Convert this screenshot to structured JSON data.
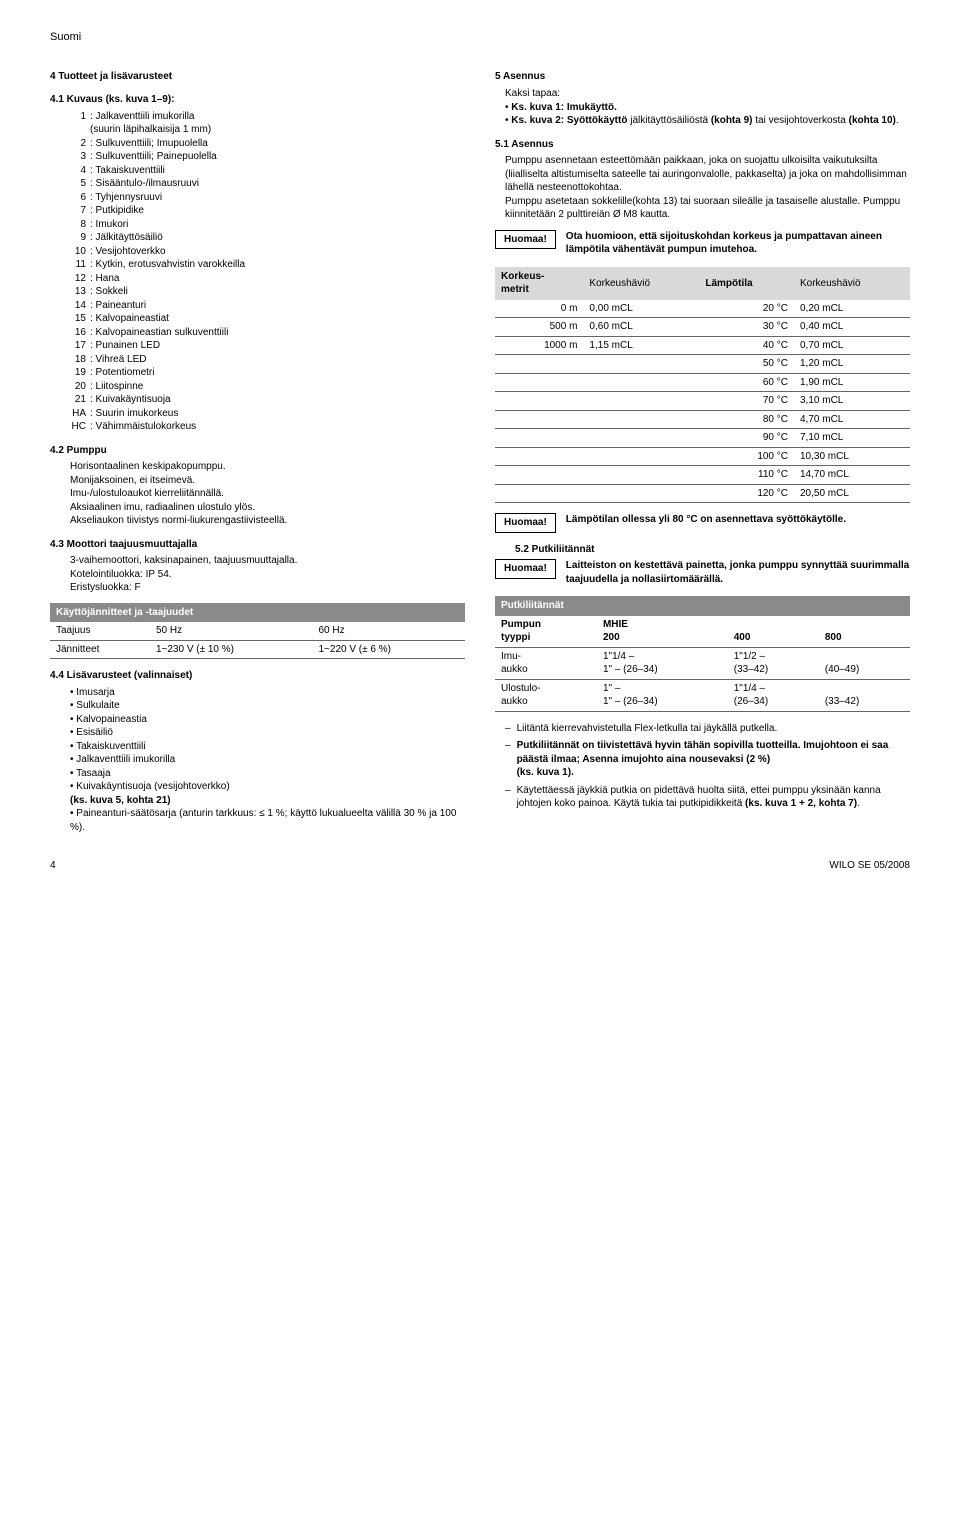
{
  "header": {
    "lang": "Suomi"
  },
  "s4": {
    "title": "4 Tuotteet ja lisävarusteet",
    "s41": {
      "title": "4.1 Kuvaus (ks. kuva 1–9):",
      "items": [
        {
          "n": "1",
          "t": ": Jalkaventtiili imukorilla\n(suurin läpihalkaisija 1 mm)"
        },
        {
          "n": "2",
          "t": ": Sulkuventtiili; Imupuolella"
        },
        {
          "n": "3",
          "t": ": Sulkuventtiili; Painepuolella"
        },
        {
          "n": "4",
          "t": ": Takaiskuventtiili"
        },
        {
          "n": "5",
          "t": ": Sisääntulo-/ilmausruuvi"
        },
        {
          "n": "6",
          "t": ": Tyhjennysruuvi"
        },
        {
          "n": "7",
          "t": ": Putkipidike"
        },
        {
          "n": "8",
          "t": ": Imukori"
        },
        {
          "n": "9",
          "t": ": Jälkitäyttösäiliö"
        },
        {
          "n": "10",
          "t": ": Vesijohtoverkko"
        },
        {
          "n": "11",
          "t": ": Kytkin, erotusvahvistin varokkeilla"
        },
        {
          "n": "12",
          "t": ": Hana"
        },
        {
          "n": "13",
          "t": ": Sokkeli"
        },
        {
          "n": "14",
          "t": ": Paineanturi"
        },
        {
          "n": "15",
          "t": ": Kalvopaineastiat"
        },
        {
          "n": "16",
          "t": ": Kalvopaineastian sulkuventtiili"
        },
        {
          "n": "17",
          "t": ": Punainen LED"
        },
        {
          "n": "18",
          "t": ": Vihreä LED"
        },
        {
          "n": "19",
          "t": ": Potentiometri"
        },
        {
          "n": "20",
          "t": ": Liitospinne"
        },
        {
          "n": "21",
          "t": ": Kuivakäyntisuoja"
        },
        {
          "n": "HA",
          "t": ": Suurin imukorkeus"
        },
        {
          "n": "HC",
          "t": ": Vähimmäistulokorkeus"
        }
      ]
    },
    "s42": {
      "title": "4.2 Pumppu",
      "lines": [
        "Horisontaalinen keskipakopumppu.",
        "Monijaksoinen, ei itseimevä.",
        "Imu-/ulostuloaukot kierreliitännällä.",
        "Aksiaalinen imu, radiaalinen ulostulo ylös.",
        "Akseliaukon tiivistys normi-liukurengastiivisteellä."
      ]
    },
    "s43": {
      "title": "4.3 Moottori taajuusmuuttajalla",
      "lines": [
        "3-vaihemoottori, kaksinapainen, taajuusmuuttajalla.",
        "Kotelointiluokka: IP 54.",
        "Eristysluokka: F"
      ]
    },
    "volt_table": {
      "header": "Käyttöjännitteet ja -taajuudet",
      "rows": [
        [
          "Taajuus",
          "50 Hz",
          "60 Hz"
        ],
        [
          "Jännitteet",
          "1~230 V (± 10 %)",
          "1~220 V (± 6 %)"
        ]
      ]
    },
    "s44": {
      "title": "4.4 Lisävarusteet (valinnaiset)",
      "items": [
        "Imusarja",
        "Sulkulaite",
        "Kalvopaineastia",
        "Esisäiliö",
        "Takaiskuventtiili",
        "Jalkaventtiili imukorilla",
        "Tasaaja",
        "Kuivakäyntisuoja (vesijohtoverkko)\n(ks. kuva 5, kohta 21)",
        "Paineanturi-säätösarja (anturin tarkkuus: ≤ 1 %; käyttö lukualueelta välillä 30 % ja 100 %)."
      ]
    }
  },
  "s5": {
    "title": "5 Asennus",
    "intro": [
      "Kaksi tapaa:",
      "• Ks. kuva 1: Imukäyttö.",
      "• Ks. kuva 2: Syöttökäyttö jälkitäyttösäiliöstä (kohta 9) tai vesijohtoverkosta (kohta 10)."
    ],
    "s51": {
      "title": "5.1 Asennus",
      "para": "Pumppu asennetaan esteettömään paikkaan, joka on suojattu ulkoisilta vaikutuksilta (liialliselta altistumiselta sateelle tai auringonvalolle, pakkaselta) ja joka on mahdollisimman lähellä nesteenottokohtaa.\nPumppu asetetaan sokkelille(kohta 13) tai suoraan sileälle ja tasaiselle alustalle. Pumppu kiinnitetään 2 pulttireiän Ø M8 kautta."
    },
    "note1": {
      "tag": "Huomaa!",
      "text": "Ota huomioon, että sijoituskohdan korkeus ja pumpattavan aineen lämpötila vähentävät pumpun imutehoa."
    },
    "alt_table": {
      "headers": [
        "Korkeus-\nmetrit",
        "Korkeushäviö",
        "Lämpötila",
        "Korkeushäviö"
      ],
      "rows": [
        [
          "0 m",
          "0,00 mCL",
          "20 °C",
          "0,20 mCL"
        ],
        [
          "500 m",
          "0,60 mCL",
          "30 °C",
          "0,40 mCL"
        ],
        [
          "1000 m",
          "1,15 mCL",
          "40 °C",
          "0,70 mCL"
        ],
        [
          "",
          "",
          "50 °C",
          "1,20 mCL"
        ],
        [
          "",
          "",
          "60 °C",
          "1,90 mCL"
        ],
        [
          "",
          "",
          "70 °C",
          "3,10 mCL"
        ],
        [
          "",
          "",
          "80 °C",
          "4,70 mCL"
        ],
        [
          "",
          "",
          "90 °C",
          "7,10 mCL"
        ],
        [
          "",
          "",
          "100 °C",
          "10,30 mCL"
        ],
        [
          "",
          "",
          "110 °C",
          "14,70 mCL"
        ],
        [
          "",
          "",
          "120 °C",
          "20,50 mCL"
        ]
      ]
    },
    "note2": {
      "tag": "Huomaa!",
      "text": "Lämpötilan ollessa yli 80 °C on asennettava syöttökäytölle."
    },
    "s52": {
      "title": "5.2 Putkiliitännät"
    },
    "note3": {
      "tag": "Huomaa!",
      "text": "Laitteiston on kestettävä painetta, jonka pumppu synnyttää suurimmalla taajuudella ja nollasiirtomäärällä."
    },
    "pipe_table": {
      "header": "Putkiliitännät",
      "rows": [
        [
          "Pumpun\ntyyppi",
          "MHIE\n200",
          "\n400",
          "\n800"
        ],
        [
          "Imu-\naukko",
          "1\"1/4 –\n1\" – (26–34)",
          "1\"1/2 –\n(33–42)",
          "\n(40–49)"
        ],
        [
          "Ulostulo-\naukko",
          "1\" –\n1\" – (26–34)",
          "1\"1/4 –\n(26–34)",
          "\n(33–42)"
        ]
      ]
    },
    "dash_items": [
      "Liitäntä kierrevahvistetulla Flex-letkulla tai jäykällä putkella.",
      "Putkiliitännät on tiivistettävä hyvin tähän sopivilla tuotteilla. Imujohtoon ei saa päästä ilmaa; Asenna imujohto aina nousevaksi (2 %)\n(ks. kuva 1).",
      "Käytettäessä jäykkiä putkia on pidettävä huolta siitä, ettei pumppu yksinään kanna johtojen koko painoa. Käytä tukia tai putkipidikkeitä (ks. kuva 1 + 2, kohta 7)."
    ]
  },
  "footer": {
    "page": "4",
    "imprint": "WILO SE 05/2008"
  }
}
